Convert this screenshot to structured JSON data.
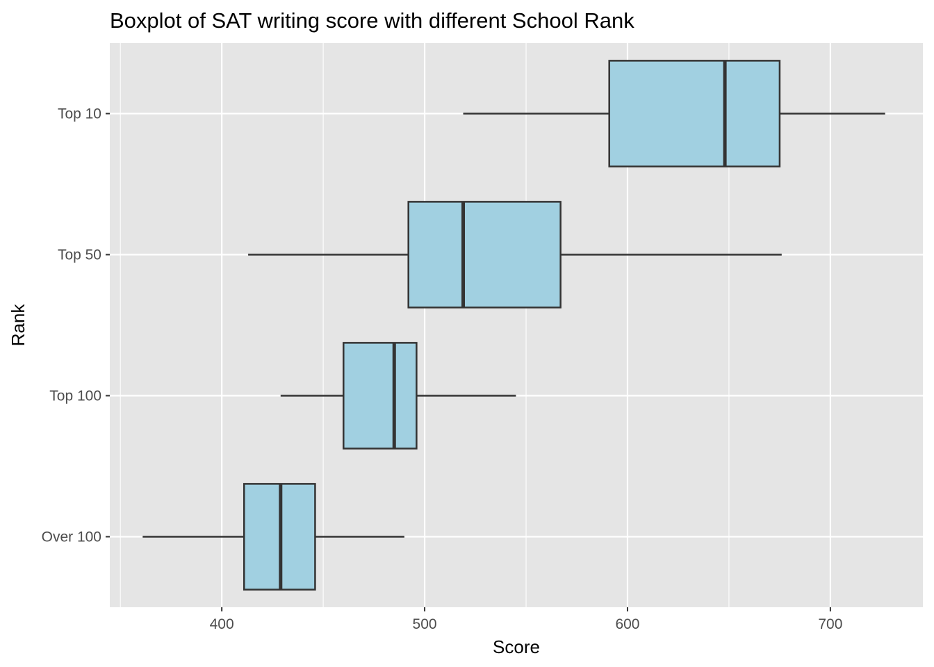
{
  "chart_data": {
    "type": "boxplot",
    "orientation": "horizontal",
    "title": "Boxplot of SAT writing score with different School Rank",
    "xlabel": "Score",
    "ylabel": "Rank",
    "xlim": [
      350,
      742
    ],
    "x_ticks": [
      400,
      500,
      600,
      700
    ],
    "x_minor_ticks": [
      350,
      450,
      550,
      650
    ],
    "categories": [
      "Top 10",
      "Top 50",
      "Top 100",
      "Over 100"
    ],
    "boxes": [
      {
        "category": "Top 10",
        "whisker_low": 519,
        "q1": 591,
        "median": 648,
        "q3": 675,
        "whisker_high": 727
      },
      {
        "category": "Top 50",
        "whisker_low": 413,
        "q1": 492,
        "median": 519,
        "q3": 567,
        "whisker_high": 676
      },
      {
        "category": "Top 100",
        "whisker_low": 429,
        "q1": 460,
        "median": 485,
        "q3": 496,
        "whisker_high": 545
      },
      {
        "category": "Over 100",
        "whisker_low": 361,
        "q1": 411,
        "median": 429,
        "q3": 446,
        "whisker_high": 490
      }
    ],
    "grid": true,
    "legend": "none",
    "colors": {
      "box_fill": "#a1d0e1",
      "box_stroke": "#333333",
      "panel_background": "#e5e5e5",
      "grid": "#ffffff"
    }
  }
}
